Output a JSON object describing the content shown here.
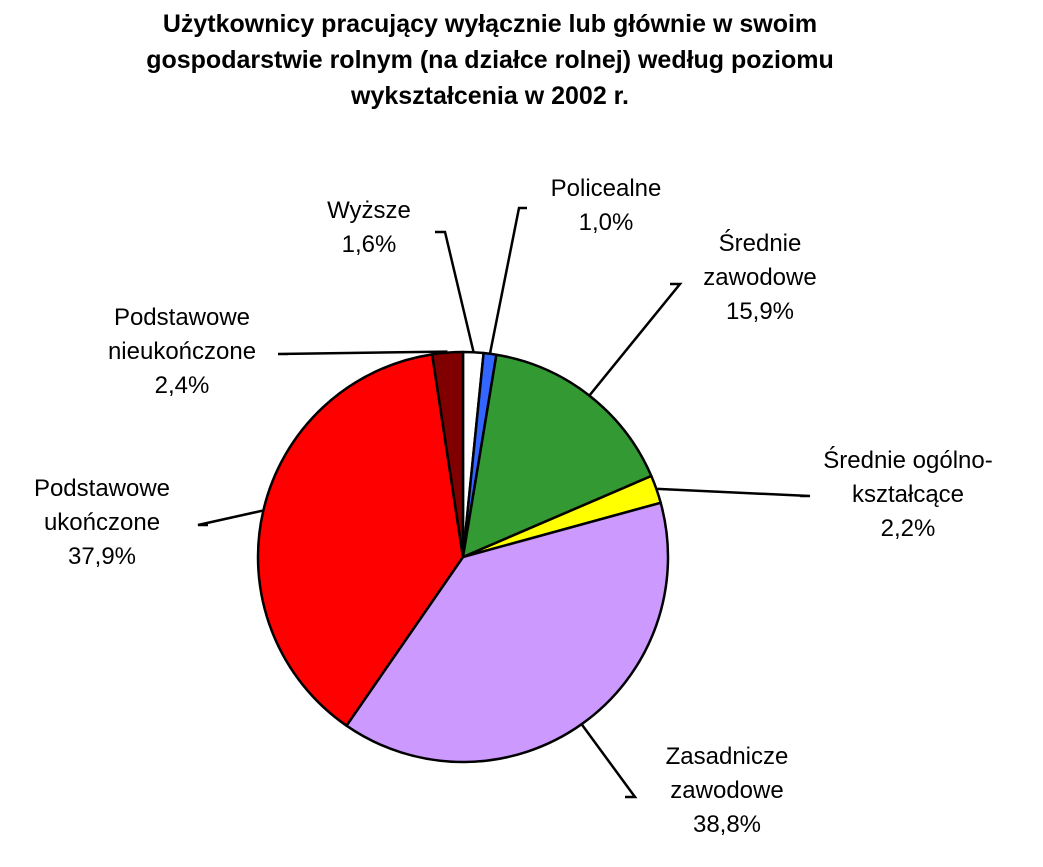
{
  "chart_data": {
    "type": "pie",
    "title_lines": [
      "Użytkownicy pracujący wyłącznie lub głównie w swoim",
      "gospodarstwie rolnym (na działce rolnej) według poziomu",
      "wykształcenia w 2002 r."
    ],
    "series": [
      {
        "values": [
          1.6,
          1.0,
          15.9,
          2.2,
          38.8,
          37.9,
          2.4
        ],
        "value_labels": [
          "1,6%",
          "1,0%",
          "15,9%",
          "2,2%",
          "38,8%",
          "37,9%",
          "2,4%"
        ]
      }
    ],
    "categories": [
      "Wyższe",
      "Policealne",
      "Średnie zawodowe",
      "Średnie ogólnokształcące",
      "Zasadnicze zawodowe",
      "Podstawowe ukończone",
      "Podstawowe nieukończone"
    ],
    "category_label_lines": [
      [
        "Wyższe"
      ],
      [
        "Policealne"
      ],
      [
        "Średnie",
        "zawodowe"
      ],
      [
        "Średnie ogólno-",
        "kształcące"
      ],
      [
        "Zasadnicze",
        "zawodowe"
      ],
      [
        "Podstawowe",
        "ukończone"
      ],
      [
        "Podstawowe",
        "nieukończone"
      ]
    ],
    "colors": [
      "#FFFFFF",
      "#3366FF",
      "#339933",
      "#FFFF00",
      "#CC99FF",
      "#FF0000",
      "#800000"
    ],
    "start": "12 o'clock",
    "direction": "clockwise",
    "legend": "none"
  }
}
